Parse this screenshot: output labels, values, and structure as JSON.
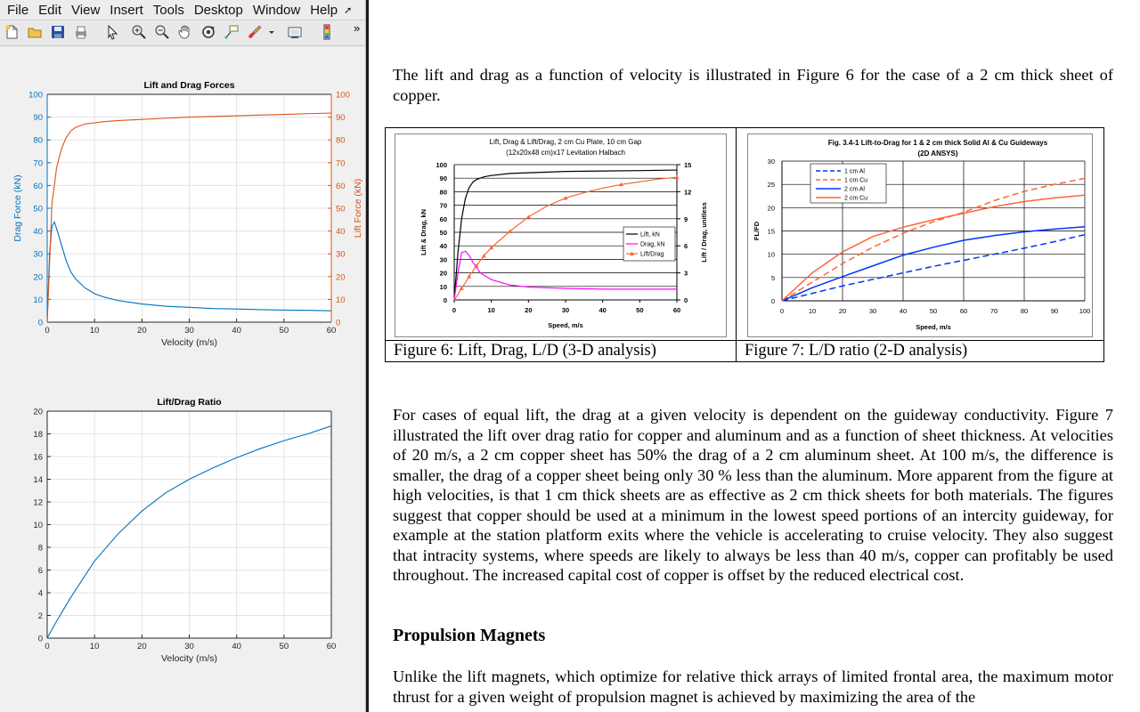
{
  "menu": [
    "File",
    "Edit",
    "View",
    "Insert",
    "Tools",
    "Desktop",
    "Window",
    "Help"
  ],
  "toolbar": {
    "icons": [
      "new-figure-icon",
      "open-file-icon",
      "save-icon",
      "print-icon",
      "pointer-icon",
      "zoom-in-icon",
      "zoom-out-icon",
      "pan-hand-icon",
      "rotate-3d-icon",
      "data-cursor-icon",
      "brush-icon",
      "brush-dropdown-icon",
      "link-plot-icon",
      "colorbar-icon"
    ],
    "overflow": "»"
  },
  "colors": {
    "matlab_blue": "#0072BD",
    "matlab_orange": "#D95319",
    "figure_gray": "#F0F0F0",
    "excel_black": "#000000",
    "excel_magenta": "#FF00FF",
    "excel_orange": "#FF6633",
    "ansys_blue": "#0033FF"
  },
  "document": {
    "intro": "The lift and drag as a function of velocity is illustrated in Figure 6 for the case of a 2 cm thick sheet of copper.",
    "fig6_caption": "Figure 6: Lift, Drag, L/D (3-D analysis)",
    "fig7_caption": "Figure 7: L/D ratio (2-D analysis)",
    "body": "For cases of equal lift, the drag at a given velocity is dependent on the guideway conductivity. Figure 7 illustrated the lift over drag ratio for copper and aluminum and as a function of sheet thickness. At velocities of 20 m/s, a 2 cm copper sheet has 50% the drag of a 2 cm aluminum sheet. At 100 m/s, the difference is smaller, the drag of a copper sheet being only 30 % less than the aluminum. More apparent from the figure at high velocities, is that 1 cm thick sheets are as effective as 2 cm thick sheets for both materials. The figures suggest that copper should be used at a minimum in the lowest speed portions of an intercity guideway, for example at the station platform exits where the vehicle is accelerating to cruise velocity. They also suggest that intracity systems, where speeds are likely to always be less than 40 m/s, copper can profitably be used throughout. The increased capital cost of copper is offset by the reduced electrical cost.",
    "heading": "Propulsion Magnets",
    "tail": "Unlike the lift magnets, which optimize for relative thick arrays of limited frontal area, the maximum motor thrust for a given weight of propulsion magnet is achieved by maximizing the area of the"
  },
  "chart_data": [
    {
      "id": "matlab-lift-drag",
      "type": "line",
      "title": "Lift and Drag Forces",
      "xlabel": "Velocity (m/s)",
      "ylabel": "Drag Force (kN)",
      "y2label": "Lift Force (kN)",
      "xlim": [
        0,
        60
      ],
      "ylim": [
        0,
        100
      ],
      "y2lim": [
        0,
        100
      ],
      "xticks": [
        "0",
        "10",
        "20",
        "30",
        "40",
        "50",
        "60"
      ],
      "yticks": [
        "0",
        "10",
        "20",
        "30",
        "40",
        "50",
        "60",
        "70",
        "80",
        "90",
        "100"
      ],
      "y2ticks": [
        "0",
        "10",
        "20",
        "30",
        "40",
        "50",
        "60",
        "70",
        "80",
        "90",
        "100"
      ],
      "grid": true,
      "series": [
        {
          "axis": "left",
          "color": "#0072BD",
          "x": [
            0,
            0.5,
            1,
            1.5,
            2,
            3,
            4,
            5,
            6,
            8,
            10,
            12,
            15,
            20,
            25,
            30,
            35,
            40,
            45,
            50,
            55,
            60
          ],
          "y": [
            0,
            30,
            42,
            44,
            41,
            34,
            27,
            22,
            19,
            15,
            12.5,
            11,
            9.5,
            8,
            7,
            6.5,
            6,
            5.8,
            5.5,
            5.3,
            5.2,
            5
          ]
        },
        {
          "axis": "right",
          "color": "#D95319",
          "x": [
            0,
            1,
            2,
            3,
            4,
            5,
            6,
            8,
            10,
            12,
            15,
            20,
            25,
            30,
            35,
            40,
            45,
            50,
            55,
            60
          ],
          "y": [
            0,
            52,
            68,
            76,
            81,
            84,
            85.5,
            87,
            87.5,
            88,
            88.5,
            89,
            89.5,
            90,
            90.3,
            90.6,
            90.9,
            91.2,
            91.5,
            91.8
          ]
        }
      ]
    },
    {
      "id": "matlab-lift-drag-ratio",
      "type": "line",
      "title": "Lift/Drag Ratio",
      "xlabel": "Velocity (m/s)",
      "xlim": [
        0,
        60
      ],
      "ylim": [
        0,
        20
      ],
      "xticks": [
        "0",
        "10",
        "20",
        "30",
        "40",
        "50",
        "60"
      ],
      "yticks": [
        "0",
        "2",
        "4",
        "6",
        "8",
        "10",
        "12",
        "14",
        "16",
        "18",
        "20"
      ],
      "grid": true,
      "series": [
        {
          "color": "#0072BD",
          "x": [
            0,
            2,
            5,
            10,
            15,
            20,
            25,
            30,
            35,
            40,
            45,
            50,
            55,
            60
          ],
          "y": [
            0,
            1.5,
            3.6,
            6.8,
            9.2,
            11.2,
            12.8,
            14,
            15,
            15.9,
            16.7,
            17.4,
            18,
            18.7
          ]
        }
      ]
    },
    {
      "id": "figure6",
      "type": "line",
      "title": "Lift, Drag & Lift/Drag, 2 cm Cu Plate, 10 cm Gap",
      "subtitle": "(12x20x48 cm)x17 Levitation Halbach",
      "xlabel": "Speed, m/s",
      "ylabel": "Lift & Drag, kN",
      "y2label": "Lift / Drag, unitless",
      "xlim": [
        0,
        60
      ],
      "ylim": [
        0,
        100
      ],
      "y2lim": [
        0,
        15
      ],
      "xticks": [
        "0",
        "10",
        "20",
        "30",
        "40",
        "50",
        "60"
      ],
      "yticks": [
        "0",
        "10",
        "20",
        "30",
        "40",
        "50",
        "60",
        "70",
        "80",
        "90",
        "100"
      ],
      "y2ticks": [
        "0",
        "3",
        "6",
        "9",
        "12",
        "15"
      ],
      "legend_position": "right",
      "series": [
        {
          "name": "Lift, kN",
          "axis": "left",
          "color": "#000000",
          "x": [
            0,
            1,
            2,
            3,
            4,
            5,
            6,
            8,
            10,
            15,
            20,
            30,
            40,
            50,
            60
          ],
          "y": [
            0,
            35,
            60,
            75,
            83,
            87,
            89,
            91,
            92,
            93.5,
            94,
            95,
            95.3,
            95.6,
            96
          ]
        },
        {
          "name": "Drag, kN",
          "axis": "left",
          "color": "#FF00FF",
          "x": [
            0,
            1,
            2,
            3,
            4,
            5,
            7,
            10,
            15,
            20,
            30,
            40,
            50,
            60
          ],
          "y": [
            0,
            20,
            35,
            36,
            33,
            28,
            20,
            15,
            11,
            9.5,
            8.5,
            8,
            8,
            8
          ]
        },
        {
          "name": "Lift/Drag",
          "axis": "right",
          "color": "#FF6633",
          "x": [
            0,
            1,
            2,
            3,
            4,
            5,
            6,
            8,
            10,
            15,
            20,
            25,
            30,
            35,
            40,
            45,
            50,
            55,
            60
          ],
          "y": [
            0,
            0.6,
            1.3,
            1.9,
            2.6,
            3.2,
            3.8,
            4.9,
            5.8,
            7.6,
            9.2,
            10.4,
            11.3,
            11.9,
            12.4,
            12.8,
            13.1,
            13.4,
            13.6
          ]
        }
      ]
    },
    {
      "id": "figure7",
      "type": "line",
      "title": "Fig. 3.4-1 Lift-to-Drag for 1 & 2 cm thick Solid Al & Cu Guideways",
      "subtitle": "(2D ANSYS)",
      "xlabel": "Speed, m/s",
      "ylabel": "FL/FD",
      "xlim": [
        0,
        100
      ],
      "ylim": [
        0,
        30
      ],
      "xticks": [
        "0",
        "10",
        "20",
        "30",
        "40",
        "50",
        "60",
        "70",
        "80",
        "90",
        "100"
      ],
      "yticks": [
        "0",
        "5",
        "10",
        "15",
        "20",
        "25",
        "30"
      ],
      "legend_position": "top-left",
      "series": [
        {
          "name": "1 cm Al",
          "color": "#0033FF",
          "dashed": true,
          "x": [
            0,
            10,
            20,
            30,
            40,
            50,
            60,
            70,
            80,
            90,
            100
          ],
          "y": [
            0,
            1.6,
            3.2,
            4.6,
            6,
            7.4,
            8.7,
            10,
            11.3,
            12.7,
            14.2
          ]
        },
        {
          "name": "1 cm Cu",
          "color": "#FF6633",
          "dashed": true,
          "x": [
            0,
            10,
            20,
            30,
            40,
            50,
            60,
            70,
            80,
            90,
            100
          ],
          "y": [
            0,
            4,
            8,
            11.5,
            14.5,
            17,
            19,
            21.5,
            23.5,
            25,
            26.3
          ]
        },
        {
          "name": "2 cm Al",
          "color": "#0033FF",
          "dashed": false,
          "x": [
            0,
            10,
            20,
            30,
            40,
            50,
            60,
            70,
            80,
            90,
            100
          ],
          "y": [
            0,
            2.8,
            5.2,
            7.5,
            9.8,
            11.5,
            13,
            14,
            14.8,
            15.4,
            15.9
          ]
        },
        {
          "name": "2 cm Cu",
          "color": "#FF6633",
          "dashed": false,
          "x": [
            0,
            10,
            20,
            30,
            40,
            50,
            60,
            70,
            80,
            90,
            100
          ],
          "y": [
            0,
            6,
            10.5,
            13.8,
            15.8,
            17.4,
            18.8,
            20.2,
            21.3,
            22.1,
            22.7
          ]
        }
      ]
    }
  ]
}
